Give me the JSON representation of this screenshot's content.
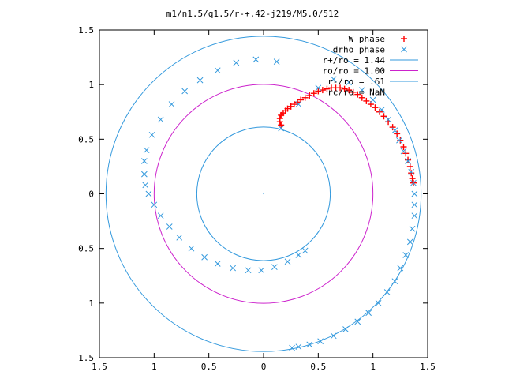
{
  "chart_data": {
    "type": "scatter",
    "title": "m1/n1.5/q1.5/r-+.42-j219/M5.0/512",
    "xlim": [
      -1.5,
      1.5
    ],
    "ylim": [
      -1.5,
      1.5
    ],
    "xticks": [
      {
        "v": -1.5,
        "label": "1.5"
      },
      {
        "v": -1,
        "label": "1"
      },
      {
        "v": -0.5,
        "label": "0.5"
      },
      {
        "v": 0,
        "label": "0"
      },
      {
        "v": 0.5,
        "label": "0.5"
      },
      {
        "v": 1,
        "label": "1"
      },
      {
        "v": 1.5,
        "label": "1.5"
      }
    ],
    "yticks": [
      {
        "v": 1.5,
        "label": "1.5"
      },
      {
        "v": 1,
        "label": "1"
      },
      {
        "v": 0.5,
        "label": "0.5"
      },
      {
        "v": 0,
        "label": "0"
      },
      {
        "v": -0.5,
        "label": "0.5"
      },
      {
        "v": -1,
        "label": "1"
      },
      {
        "v": -1.5,
        "label": "1.5"
      }
    ],
    "grid": false,
    "legend_position": "top-right",
    "series": [
      {
        "name": "W phase",
        "kind": "points",
        "marker": "plus",
        "color": "#ff0000",
        "points": [
          [
            0.16,
            0.63
          ],
          [
            0.15,
            0.66
          ],
          [
            0.15,
            0.69
          ],
          [
            0.16,
            0.72
          ],
          [
            0.18,
            0.74
          ],
          [
            0.2,
            0.76
          ],
          [
            0.22,
            0.78
          ],
          [
            0.25,
            0.8
          ],
          [
            0.28,
            0.82
          ],
          [
            0.31,
            0.84
          ],
          [
            0.34,
            0.86
          ],
          [
            0.38,
            0.88
          ],
          [
            0.42,
            0.9
          ],
          [
            0.46,
            0.92
          ],
          [
            0.5,
            0.94
          ],
          [
            0.54,
            0.95
          ],
          [
            0.58,
            0.96
          ],
          [
            0.62,
            0.97
          ],
          [
            0.66,
            0.97
          ],
          [
            0.7,
            0.97
          ],
          [
            0.74,
            0.96
          ],
          [
            0.78,
            0.95
          ],
          [
            0.82,
            0.93
          ],
          [
            0.86,
            0.91
          ],
          [
            0.9,
            0.88
          ],
          [
            0.94,
            0.85
          ],
          [
            0.98,
            0.82
          ],
          [
            1.02,
            0.79
          ],
          [
            1.06,
            0.75
          ],
          [
            1.1,
            0.71
          ],
          [
            1.14,
            0.66
          ],
          [
            1.18,
            0.61
          ],
          [
            1.22,
            0.55
          ],
          [
            1.25,
            0.49
          ],
          [
            1.28,
            0.43
          ],
          [
            1.3,
            0.37
          ],
          [
            1.32,
            0.31
          ],
          [
            1.34,
            0.25
          ],
          [
            1.35,
            0.19
          ],
          [
            1.36,
            0.14
          ],
          [
            1.37,
            0.1
          ]
        ]
      },
      {
        "name": "drho phase",
        "kind": "points",
        "marker": "cross",
        "color": "#3399dd",
        "points": [
          [
            0.16,
            0.6
          ],
          [
            0.32,
            0.82
          ],
          [
            0.5,
            0.97
          ],
          [
            0.64,
            1.05
          ],
          [
            0.78,
            1.02
          ],
          [
            0.9,
            0.95
          ],
          [
            1.0,
            0.86
          ],
          [
            1.08,
            0.77
          ],
          [
            1.14,
            0.68
          ],
          [
            1.2,
            0.58
          ],
          [
            1.24,
            0.49
          ],
          [
            1.28,
            0.39
          ],
          [
            1.32,
            0.3
          ],
          [
            1.35,
            0.2
          ],
          [
            1.37,
            0.1
          ],
          [
            1.38,
            0.0
          ],
          [
            1.38,
            -0.1
          ],
          [
            1.38,
            -0.2
          ],
          [
            1.36,
            -0.32
          ],
          [
            1.34,
            -0.44
          ],
          [
            1.3,
            -0.56
          ],
          [
            1.25,
            -0.68
          ],
          [
            1.2,
            -0.8
          ],
          [
            1.13,
            -0.9
          ],
          [
            1.05,
            -1.0
          ],
          [
            0.96,
            -1.09
          ],
          [
            0.86,
            -1.17
          ],
          [
            0.75,
            -1.24
          ],
          [
            0.64,
            -1.3
          ],
          [
            0.52,
            -1.35
          ],
          [
            0.42,
            -1.38
          ],
          [
            0.32,
            -1.4
          ],
          [
            0.26,
            -1.41
          ],
          [
            0.12,
            1.21
          ],
          [
            -0.07,
            1.23
          ],
          [
            -0.25,
            1.2
          ],
          [
            -0.42,
            1.13
          ],
          [
            -0.58,
            1.04
          ],
          [
            -0.72,
            0.94
          ],
          [
            -0.84,
            0.82
          ],
          [
            -0.94,
            0.68
          ],
          [
            -1.02,
            0.54
          ],
          [
            -1.07,
            0.4
          ],
          [
            -1.09,
            0.3
          ],
          [
            -1.09,
            0.18
          ],
          [
            -1.08,
            0.08
          ],
          [
            -1.05,
            0.0
          ],
          [
            -1.0,
            -0.1
          ],
          [
            -0.94,
            -0.2
          ],
          [
            -0.86,
            -0.3
          ],
          [
            -0.77,
            -0.4
          ],
          [
            -0.66,
            -0.5
          ],
          [
            -0.54,
            -0.58
          ],
          [
            -0.42,
            -0.64
          ],
          [
            -0.28,
            -0.68
          ],
          [
            -0.14,
            -0.7
          ],
          [
            -0.02,
            -0.7
          ],
          [
            0.1,
            -0.67
          ],
          [
            0.22,
            -0.62
          ],
          [
            0.32,
            -0.56
          ],
          [
            0.38,
            -0.52
          ]
        ]
      },
      {
        "name": "r+/ro = 1.44",
        "kind": "circle",
        "radius": 1.44,
        "color": "#3399dd"
      },
      {
        "name": "ro/ro = 1.00",
        "kind": "circle",
        "radius": 1.0,
        "color": "#cc22cc"
      },
      {
        "name": "r-/ro = .61",
        "kind": "circle",
        "radius": 0.61,
        "color": "#3399dd"
      },
      {
        "name": "rc/ro = NaN",
        "kind": "circle",
        "radius": null,
        "color": "#44cccc"
      }
    ]
  }
}
